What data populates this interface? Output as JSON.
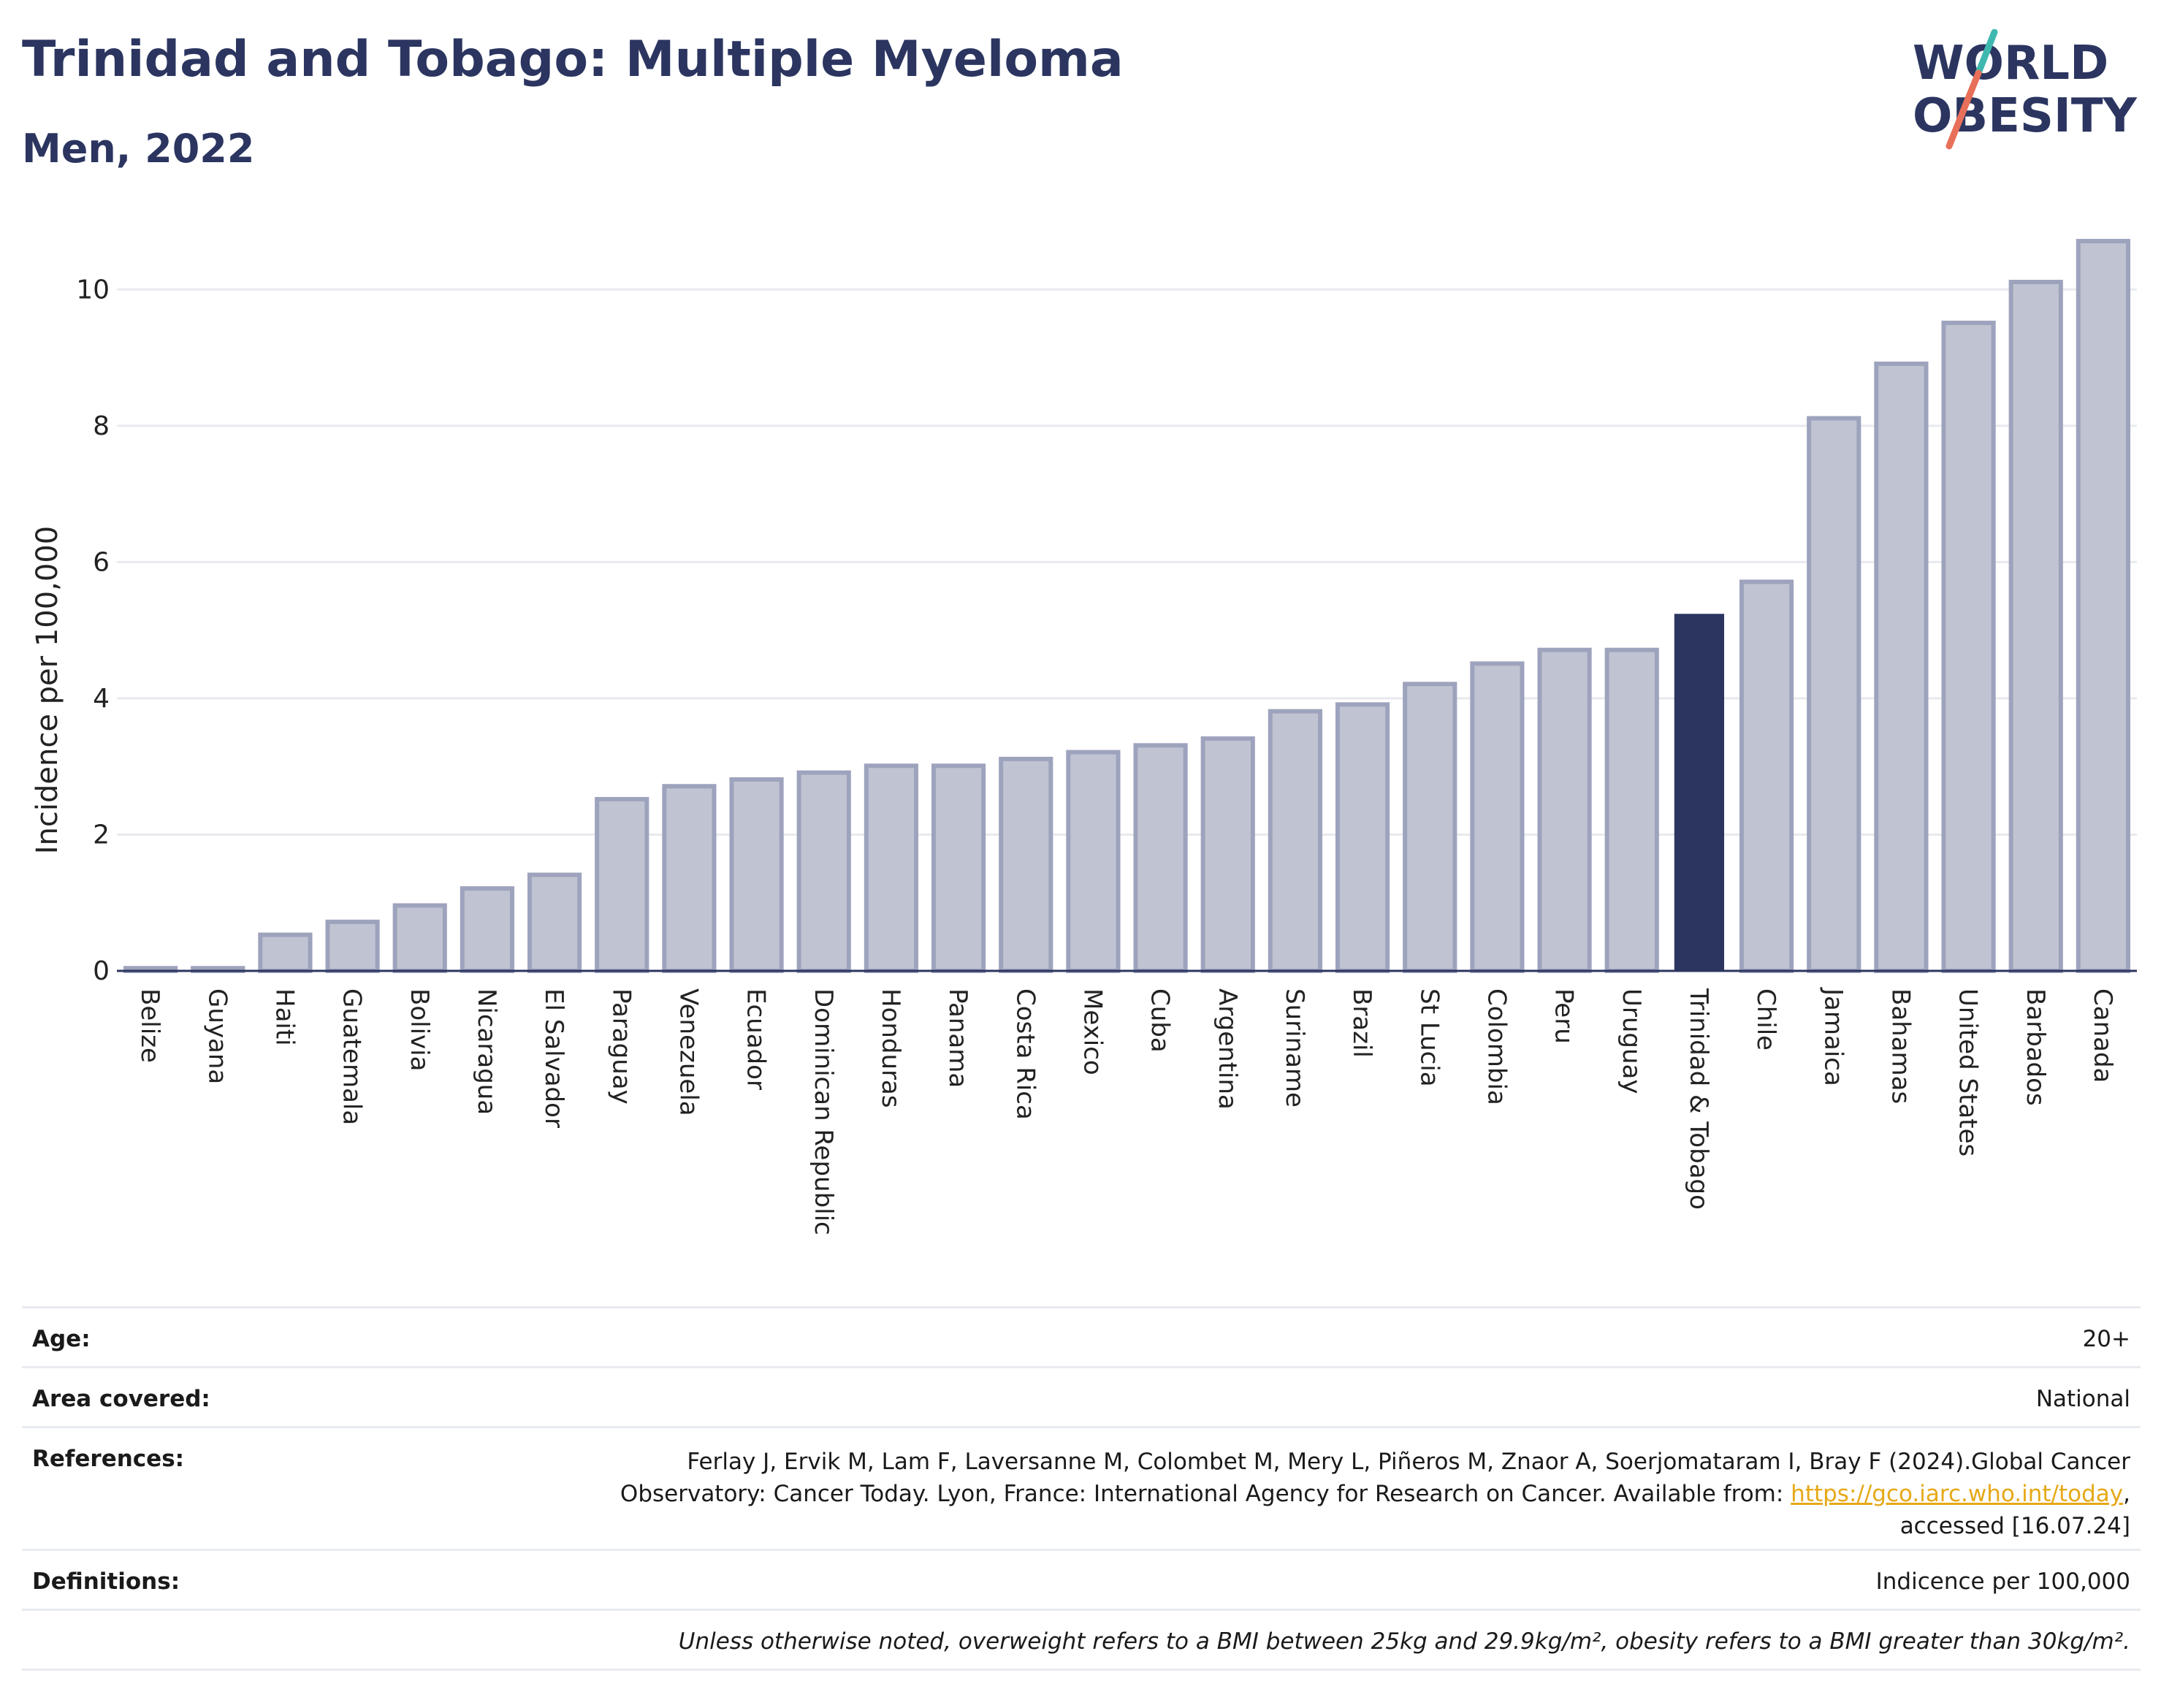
{
  "header": {
    "title": "Trinidad and Tobago: Multiple Myeloma",
    "subtitle": "Men, 2022"
  },
  "logo": {
    "line1": "WORLD",
    "line2": "OBESITY",
    "colors": {
      "text": "#2b3560",
      "slash_top": "#3fb8b0",
      "slash_bottom": "#e8705a"
    }
  },
  "chart_data": {
    "type": "bar",
    "ylabel": "Incidence per 100,000",
    "xlabel": "",
    "ylim": [
      0,
      11
    ],
    "yticks": [
      0,
      2,
      4,
      6,
      8,
      10
    ],
    "grid": true,
    "highlight": "Trinidad & Tobago",
    "colors": {
      "bar": "#c0c4d2",
      "bar_edge": "#9ea3bd",
      "highlight": "#2b3560",
      "grid": "#e8eaef"
    },
    "categories": [
      "Belize",
      "Guyana",
      "Haiti",
      "Guatemala",
      "Bolivia",
      "Nicaragua",
      "El Salvador",
      "Paraguay",
      "Venezuela",
      "Ecuador",
      "Dominican Republic",
      "Honduras",
      "Panama",
      "Costa Rica",
      "Mexico",
      "Cuba",
      "Argentina",
      "Suriname",
      "Brazil",
      "St Lucia",
      "Colombia",
      "Peru",
      "Uruguay",
      "Trinidad & Tobago",
      "Chile",
      "Jamaica",
      "Bahamas",
      "United States",
      "Barbados",
      "Canada"
    ],
    "values": [
      0.04,
      0.04,
      0.53,
      0.72,
      0.96,
      1.21,
      1.41,
      2.52,
      2.71,
      2.81,
      2.91,
      3.01,
      3.01,
      3.11,
      3.21,
      3.31,
      3.41,
      3.81,
      3.91,
      4.21,
      4.51,
      4.71,
      4.71,
      5.24,
      5.71,
      8.11,
      8.91,
      9.51,
      10.11,
      10.71
    ]
  },
  "info": {
    "age": {
      "label": "Age:",
      "value": "20+"
    },
    "area": {
      "label": "Area covered:",
      "value": "National"
    },
    "references": {
      "label": "References:",
      "line1": "Ferlay J, Ervik M, Lam F, Laversanne M, Colombet M, Mery L, Piñeros M, Znaor A, Soerjomataram I, Bray F (2024).Global Cancer",
      "line2_prefix": "Observatory: Cancer Today. Lyon, France: International Agency for Research on Cancer. Available from: ",
      "link": "https://gco.iarc.who.int/today",
      "line2_suffix": ",",
      "line3": "accessed [16.07.24]"
    },
    "definitions": {
      "label": "Definitions:",
      "value": "Indicence per 100,000"
    },
    "note": "Unless otherwise noted, overweight refers to a BMI between 25kg and 29.9kg/m², obesity refers to a BMI greater than 30kg/m²."
  }
}
